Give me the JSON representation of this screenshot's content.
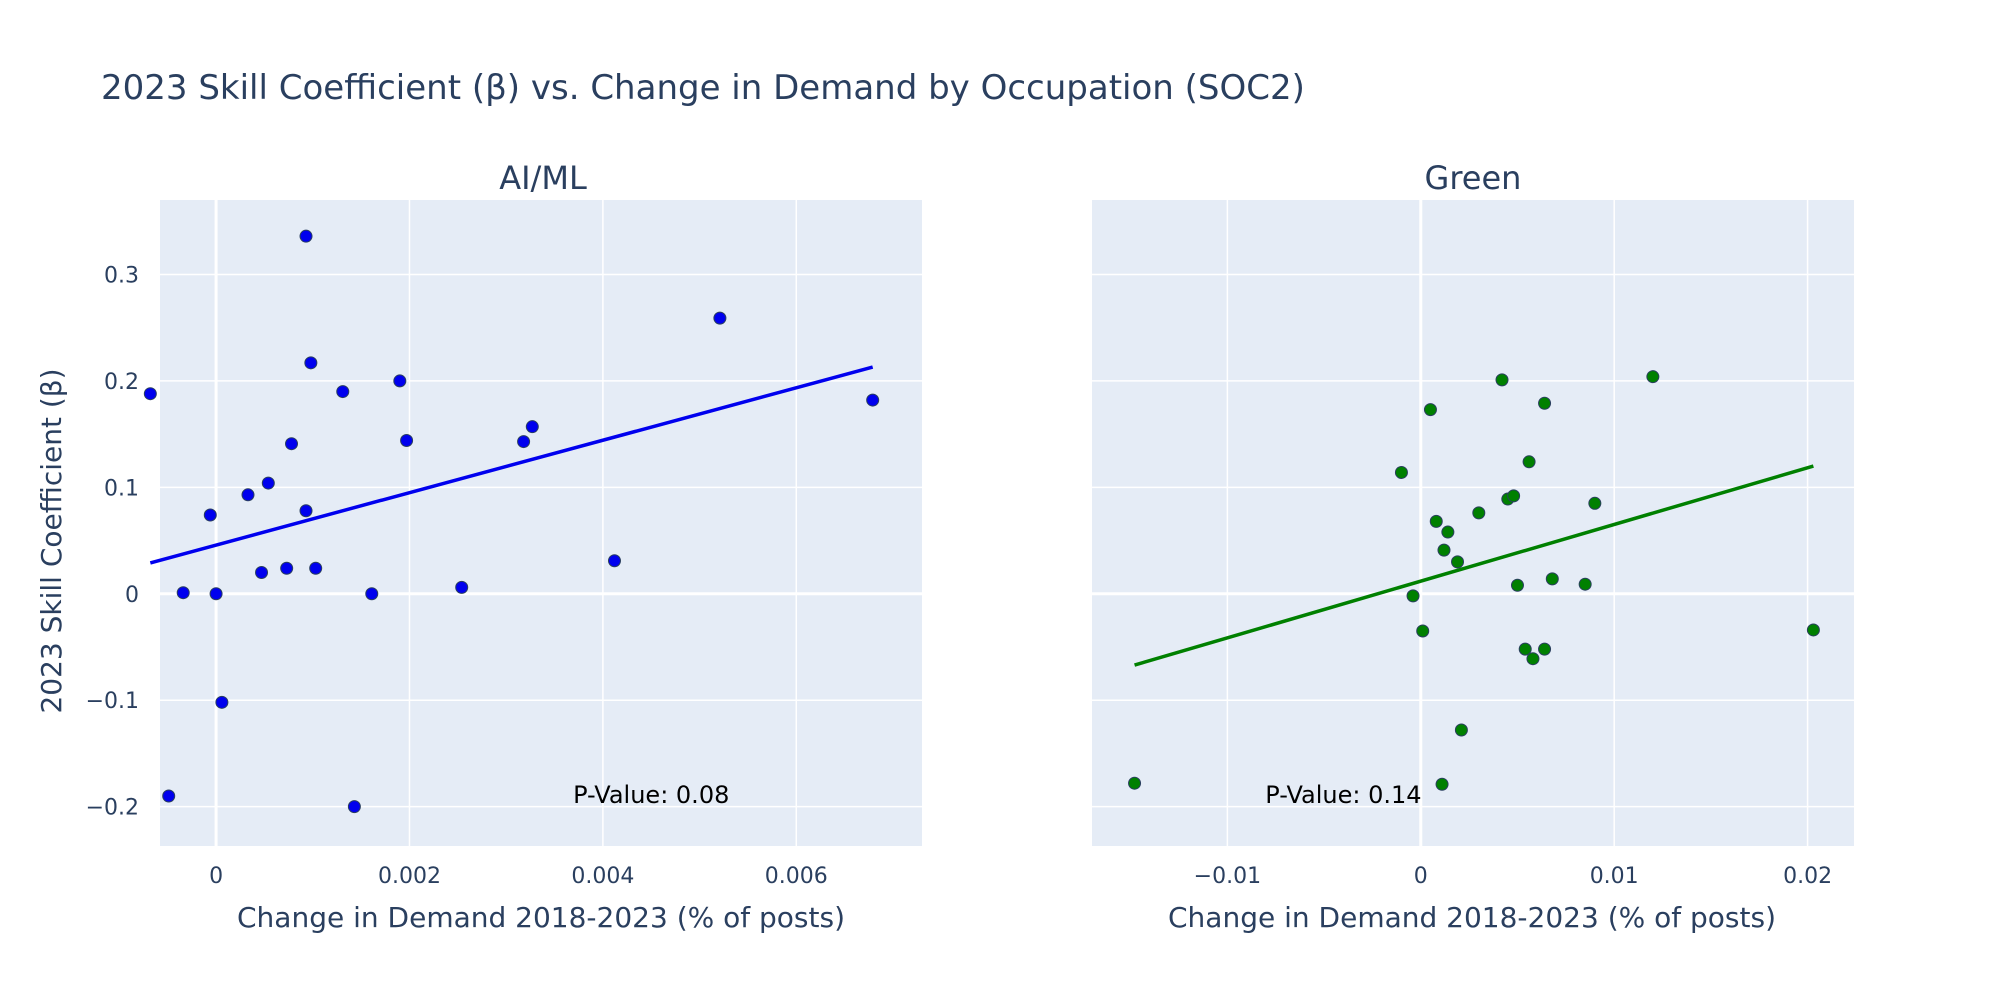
{
  "figure_title": "2023 Skill Coefficient (β) vs. Change in Demand by Occupation (SOC2)",
  "shared_ylabel": "2023 Skill Coefficient (β)",
  "colors": {
    "plot_bg": "#e5ecf6",
    "grid": "#ffffff",
    "text": "#2a3f5f",
    "aiml": "#0000ee",
    "green": "#008000"
  },
  "chart_data": [
    {
      "type": "scatter",
      "title": "AI/ML",
      "xlabel": "Change in Demand 2018-2023 (% of posts)",
      "ylabel": "2023 Skill Coefficient (β)",
      "xlim": [
        -0.00058,
        0.0073
      ],
      "ylim": [
        -0.237,
        0.37
      ],
      "xticks": [
        0,
        0.002,
        0.004,
        0.006
      ],
      "xtick_labels": [
        "0",
        "0.002",
        "0.004",
        "0.006"
      ],
      "yticks": [
        -0.2,
        -0.1,
        0,
        0.1,
        0.2,
        0.3
      ],
      "ytick_labels": [
        "−0.2",
        "−0.1",
        "0",
        "0.1",
        "0.2",
        "0.3"
      ],
      "grid": true,
      "color": "#0000ee",
      "points": [
        {
          "x": -0.00068,
          "y": 0.188
        },
        {
          "x": -0.00049,
          "y": -0.19
        },
        {
          "x": -0.00034,
          "y": 0.001
        },
        {
          "x": -6e-05,
          "y": 0.074
        },
        {
          "x": 0.0,
          "y": 0.0
        },
        {
          "x": 6e-05,
          "y": -0.102
        },
        {
          "x": 0.00033,
          "y": 0.093
        },
        {
          "x": 0.00047,
          "y": 0.02
        },
        {
          "x": 0.00054,
          "y": 0.104
        },
        {
          "x": 0.00073,
          "y": 0.024
        },
        {
          "x": 0.00078,
          "y": 0.141
        },
        {
          "x": 0.00093,
          "y": 0.336
        },
        {
          "x": 0.00093,
          "y": 0.078
        },
        {
          "x": 0.00098,
          "y": 0.217
        },
        {
          "x": 0.00103,
          "y": 0.024
        },
        {
          "x": 0.00131,
          "y": 0.19
        },
        {
          "x": 0.00143,
          "y": -0.2
        },
        {
          "x": 0.00161,
          "y": 0.0
        },
        {
          "x": 0.0019,
          "y": 0.2
        },
        {
          "x": 0.00197,
          "y": 0.144
        },
        {
          "x": 0.00254,
          "y": 0.006
        },
        {
          "x": 0.00318,
          "y": 0.143
        },
        {
          "x": 0.00327,
          "y": 0.157
        },
        {
          "x": 0.00412,
          "y": 0.031
        },
        {
          "x": 0.00521,
          "y": 0.259
        },
        {
          "x": 0.00679,
          "y": 0.182
        }
      ],
      "trendline": {
        "x": [
          -0.00068,
          0.00679
        ],
        "y": [
          0.029,
          0.213
        ]
      },
      "annotation": {
        "text": "P-Value: 0.08",
        "x": 0.0045,
        "y": -0.189
      }
    },
    {
      "type": "scatter",
      "title": "Green",
      "xlabel": "Change in Demand 2018-2023 (% of posts)",
      "ylabel": "",
      "xlim": [
        -0.017,
        0.0224
      ],
      "ylim": [
        -0.237,
        0.37
      ],
      "xticks": [
        -0.01,
        0,
        0.01,
        0.02
      ],
      "xtick_labels": [
        "−0.01",
        "0",
        "0.01",
        "0.02"
      ],
      "yticks": [
        -0.2,
        -0.1,
        0,
        0.1,
        0.2,
        0.3
      ],
      "grid": true,
      "color": "#008000",
      "points": [
        {
          "x": -0.0148,
          "y": -0.178
        },
        {
          "x": -0.001,
          "y": 0.114
        },
        {
          "x": -0.0004,
          "y": -0.002
        },
        {
          "x": 0.0001,
          "y": -0.035
        },
        {
          "x": 0.0005,
          "y": 0.173
        },
        {
          "x": 0.0008,
          "y": 0.068
        },
        {
          "x": 0.0011,
          "y": -0.179
        },
        {
          "x": 0.0012,
          "y": 0.041
        },
        {
          "x": 0.0014,
          "y": 0.058
        },
        {
          "x": 0.0019,
          "y": 0.03
        },
        {
          "x": 0.0021,
          "y": -0.128
        },
        {
          "x": 0.003,
          "y": 0.076
        },
        {
          "x": 0.0042,
          "y": 0.201
        },
        {
          "x": 0.0045,
          "y": 0.089
        },
        {
          "x": 0.0048,
          "y": 0.092
        },
        {
          "x": 0.005,
          "y": 0.008
        },
        {
          "x": 0.0054,
          "y": -0.052
        },
        {
          "x": 0.0056,
          "y": 0.124
        },
        {
          "x": 0.0058,
          "y": -0.061
        },
        {
          "x": 0.0064,
          "y": 0.179
        },
        {
          "x": 0.0064,
          "y": -0.052
        },
        {
          "x": 0.0068,
          "y": 0.014
        },
        {
          "x": 0.0085,
          "y": 0.009
        },
        {
          "x": 0.009,
          "y": 0.085
        },
        {
          "x": 0.012,
          "y": 0.204
        },
        {
          "x": 0.0203,
          "y": -0.034
        }
      ],
      "trendline": {
        "x": [
          -0.0148,
          0.0203
        ],
        "y": [
          -0.067,
          0.12
        ]
      },
      "annotation": {
        "text": "P-Value: 0.14",
        "x": -0.004,
        "y": -0.189
      }
    }
  ]
}
